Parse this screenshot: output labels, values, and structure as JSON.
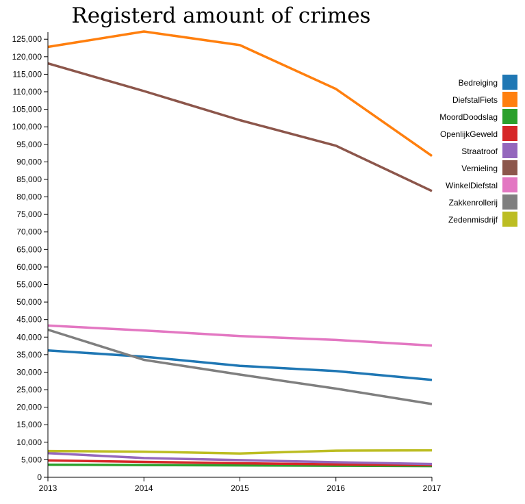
{
  "chart_data": {
    "type": "line",
    "title": "Registerd amount of crimes",
    "xlabel": "",
    "ylabel": "",
    "x": [
      2013,
      2014,
      2015,
      2016,
      2017
    ],
    "x_tick_labels": [
      "2013",
      "2014",
      "2015",
      "2016",
      "2017"
    ],
    "ylim": [
      0,
      127000
    ],
    "y_ticks": [
      0,
      5000,
      10000,
      15000,
      20000,
      25000,
      30000,
      35000,
      40000,
      45000,
      50000,
      55000,
      60000,
      65000,
      70000,
      75000,
      80000,
      85000,
      90000,
      95000,
      100000,
      105000,
      110000,
      115000,
      120000,
      125000
    ],
    "y_tick_labels": [
      "0",
      "5,000",
      "10,000",
      "15,000",
      "20,000",
      "25,000",
      "30,000",
      "35,000",
      "40,000",
      "45,000",
      "50,000",
      "55,000",
      "60,000",
      "65,000",
      "70,000",
      "75,000",
      "80,000",
      "85,000",
      "90,000",
      "95,000",
      "100,000",
      "105,000",
      "110,000",
      "115,000",
      "120,000",
      "125,000"
    ],
    "grid": false,
    "legend_position": "right",
    "series": [
      {
        "name": "Bedreiging",
        "color": "#1f77b4",
        "values": [
          36200,
          34400,
          31800,
          30300,
          27800
        ]
      },
      {
        "name": "DiefstalFiets",
        "color": "#ff7f0e",
        "values": [
          122800,
          127200,
          123300,
          110800,
          91700
        ]
      },
      {
        "name": "MoordDoodslag",
        "color": "#2ca02c",
        "values": [
          3600,
          3500,
          3400,
          3300,
          3200
        ]
      },
      {
        "name": "OpenlijkGeweld",
        "color": "#d62728",
        "values": [
          4800,
          4400,
          4000,
          3700,
          3500
        ]
      },
      {
        "name": "Straatroof",
        "color": "#9467bd",
        "values": [
          6900,
          5500,
          4900,
          4300,
          3800
        ]
      },
      {
        "name": "Vernieling",
        "color": "#8c564b",
        "values": [
          118100,
          110200,
          101900,
          94600,
          81700
        ]
      },
      {
        "name": "WinkelDiefstal",
        "color": "#e377c2",
        "values": [
          43300,
          41900,
          40300,
          39200,
          37600
        ]
      },
      {
        "name": "Zakkenrollerij",
        "color": "#7f7f7f",
        "values": [
          42100,
          33500,
          29300,
          25300,
          20900
        ]
      },
      {
        "name": "Zedenmisdrijf",
        "color": "#bcbd22",
        "values": [
          7500,
          7300,
          6800,
          7600,
          7700
        ]
      }
    ]
  }
}
